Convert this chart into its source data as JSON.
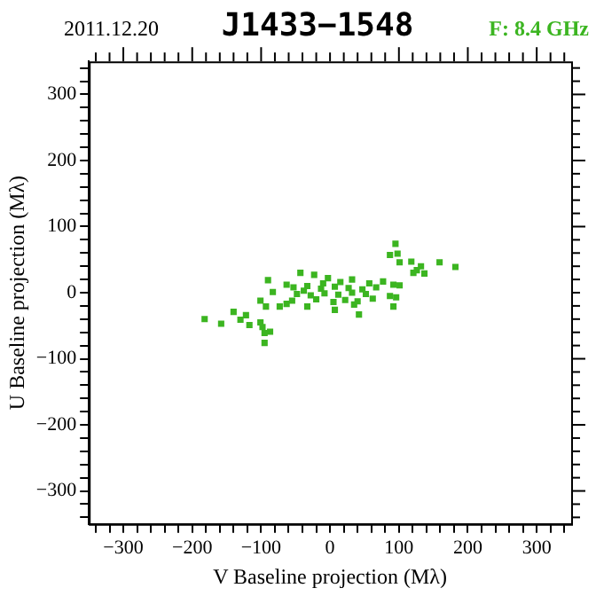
{
  "chart_data": {
    "type": "scatter",
    "title": "J1433−1548",
    "subtitle": "2011.12.20",
    "annotations": [
      "F: 8.4 GHz"
    ],
    "xlabel": "V Baseline projection (Mλ)",
    "ylabel": "U Baseline projection (Mλ)",
    "xlim": [
      -350,
      350
    ],
    "ylim": [
      -350,
      350
    ],
    "xticks": [
      {
        "value": -340,
        "label": null
      },
      {
        "value": -320,
        "label": null
      },
      -300,
      {
        "value": -280,
        "label": null
      },
      {
        "value": -260,
        "label": null
      },
      {
        "value": -240,
        "label": null
      },
      {
        "value": -220,
        "label": null
      },
      -200,
      {
        "value": -180,
        "label": null
      },
      {
        "value": -160,
        "label": null
      },
      {
        "value": -140,
        "label": null
      },
      {
        "value": -120,
        "label": null
      },
      -100,
      {
        "value": -80,
        "label": null
      },
      {
        "value": -60,
        "label": null
      },
      {
        "value": -40,
        "label": null
      },
      {
        "value": -20,
        "label": null
      },
      0,
      {
        "value": 20,
        "label": null
      },
      {
        "value": 40,
        "label": null
      },
      {
        "value": 60,
        "label": null
      },
      {
        "value": 80,
        "label": null
      },
      100,
      {
        "value": 120,
        "label": null
      },
      {
        "value": 140,
        "label": null
      },
      {
        "value": 160,
        "label": null
      },
      {
        "value": 180,
        "label": null
      },
      200,
      {
        "value": 220,
        "label": null
      },
      {
        "value": 240,
        "label": null
      },
      {
        "value": 260,
        "label": null
      },
      {
        "value": 280,
        "label": null
      },
      300,
      {
        "value": 320,
        "label": null
      },
      {
        "value": 340,
        "label": null
      }
    ],
    "yticks": [
      {
        "value": -340,
        "label": null
      },
      {
        "value": -320,
        "label": null
      },
      -300,
      {
        "value": -280,
        "label": null
      },
      {
        "value": -260,
        "label": null
      },
      {
        "value": -240,
        "label": null
      },
      {
        "value": -220,
        "label": null
      },
      -200,
      {
        "value": -180,
        "label": null
      },
      {
        "value": -160,
        "label": null
      },
      {
        "value": -140,
        "label": null
      },
      {
        "value": -120,
        "label": null
      },
      -100,
      {
        "value": -80,
        "label": null
      },
      {
        "value": -60,
        "label": null
      },
      {
        "value": -40,
        "label": null
      },
      {
        "value": -20,
        "label": null
      },
      0,
      {
        "value": 20,
        "label": null
      },
      {
        "value": 40,
        "label": null
      },
      {
        "value": 60,
        "label": null
      },
      {
        "value": 80,
        "label": null
      },
      100,
      {
        "value": 120,
        "label": null
      },
      {
        "value": 140,
        "label": null
      },
      {
        "value": 160,
        "label": null
      },
      {
        "value": 180,
        "label": null
      },
      200,
      {
        "value": 220,
        "label": null
      },
      {
        "value": 240,
        "label": null
      },
      {
        "value": 260,
        "label": null
      },
      {
        "value": 280,
        "label": null
      },
      300,
      {
        "value": 320,
        "label": null
      },
      {
        "value": 340,
        "label": null
      }
    ],
    "grid": false,
    "legend": false,
    "marker": "square",
    "series": [
      {
        "color": "#3cb521",
        "x": [
          95,
          87,
          98,
          101,
          118,
          126,
          132,
          137,
          159,
          182,
          121,
          -182,
          -158,
          -140,
          -130,
          -122,
          -117,
          -101,
          -98,
          -95,
          -87,
          -95,
          -101,
          -90,
          -83,
          -63,
          -43,
          -23,
          -3,
          32,
          57,
          77,
          92,
          101,
          87,
          96,
          92,
          42,
          7,
          -33,
          -63,
          -73,
          -93,
          -53,
          -33,
          -13,
          7,
          27,
          47,
          67,
          -48,
          -28,
          -8,
          12,
          32,
          52,
          -55,
          -20,
          5,
          22,
          40,
          62,
          -38,
          -10,
          15,
          35
        ],
        "values": [
          74,
          57,
          59,
          46,
          47,
          34,
          40,
          29,
          46,
          39,
          30,
          -40,
          -47,
          -29,
          -41,
          -34,
          -49,
          -45,
          -52,
          -61,
          -59,
          -76,
          -12,
          19,
          1,
          12,
          30,
          27,
          22,
          20,
          14,
          17,
          12,
          11,
          -5,
          -7,
          -21,
          -33,
          -26,
          -21,
          -17,
          -21,
          -21,
          8,
          10,
          6,
          9,
          7,
          5,
          8,
          -2,
          -4,
          -1,
          -3,
          0,
          -2,
          -12,
          -10,
          -14,
          -11,
          -13,
          -9,
          3,
          14,
          16,
          -18
        ]
      }
    ]
  }
}
